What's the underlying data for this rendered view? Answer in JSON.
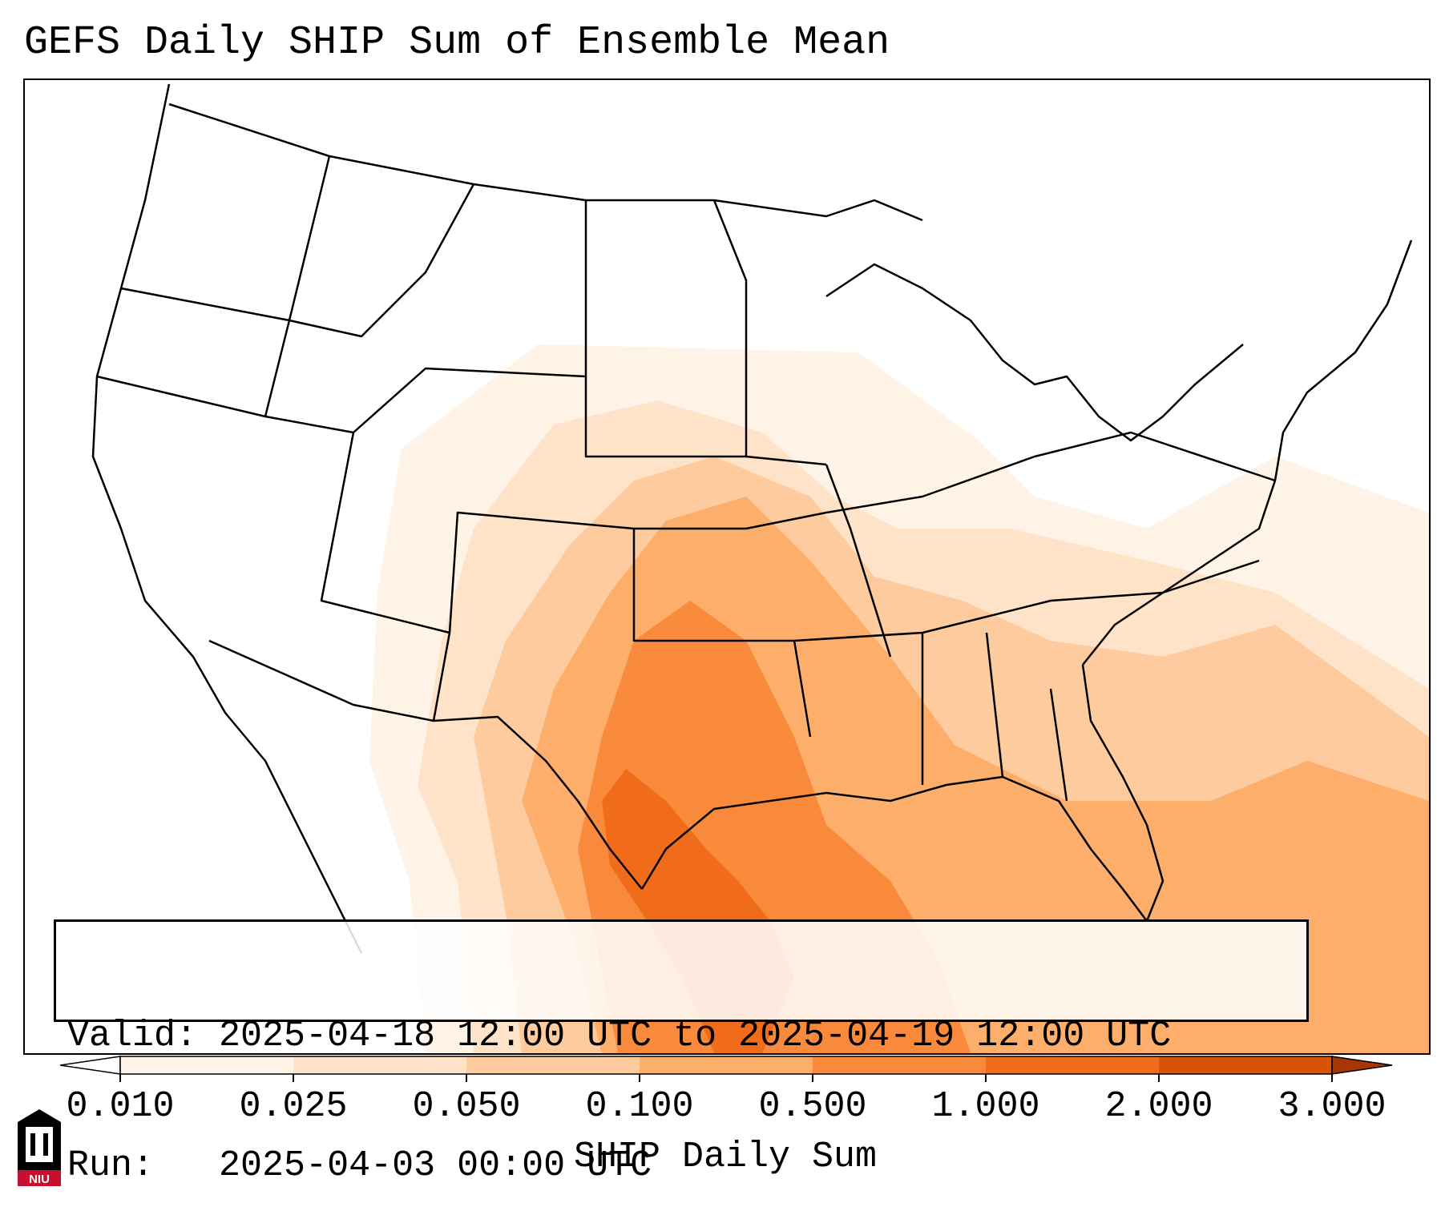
{
  "title": "GEFS Daily SHIP Sum of Ensemble Mean",
  "info": {
    "valid_label": "Valid:",
    "valid_value": "2025-04-18 12:00 UTC to 2025-04-19 12:00 UTC",
    "run_label": "Run:",
    "run_value": "2025-04-03 00:00 UTC"
  },
  "colorbar": {
    "label": "SHIP Daily Sum",
    "ticks": [
      "0.010",
      "0.025",
      "0.050",
      "0.100",
      "0.500",
      "1.000",
      "2.000",
      "3.000"
    ],
    "colors": [
      "#fff2e6",
      "#fee3c8",
      "#fdcb9e",
      "#fdae6b",
      "#f98a3c",
      "#f06c1a",
      "#d95307"
    ],
    "extend": "both",
    "under_color": "#ffffff",
    "over_color": "#a63603"
  },
  "logo": {
    "text": "NIU",
    "colors": {
      "primary": "#c8102e",
      "secondary": "#000000"
    }
  },
  "map": {
    "projection": "lambert-conformal",
    "region": "CONUS",
    "field": "SHIP daily sum, ensemble mean"
  }
}
